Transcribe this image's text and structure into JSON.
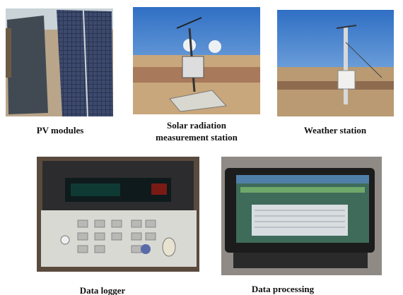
{
  "panels": [
    {
      "caption": [
        "PV modules"
      ]
    },
    {
      "caption": [
        "Solar radiation",
        "measurement station"
      ]
    },
    {
      "caption": [
        "Weather station"
      ]
    },
    {
      "caption": [
        "Data logger"
      ]
    },
    {
      "caption": [
        "Data processing"
      ]
    }
  ]
}
